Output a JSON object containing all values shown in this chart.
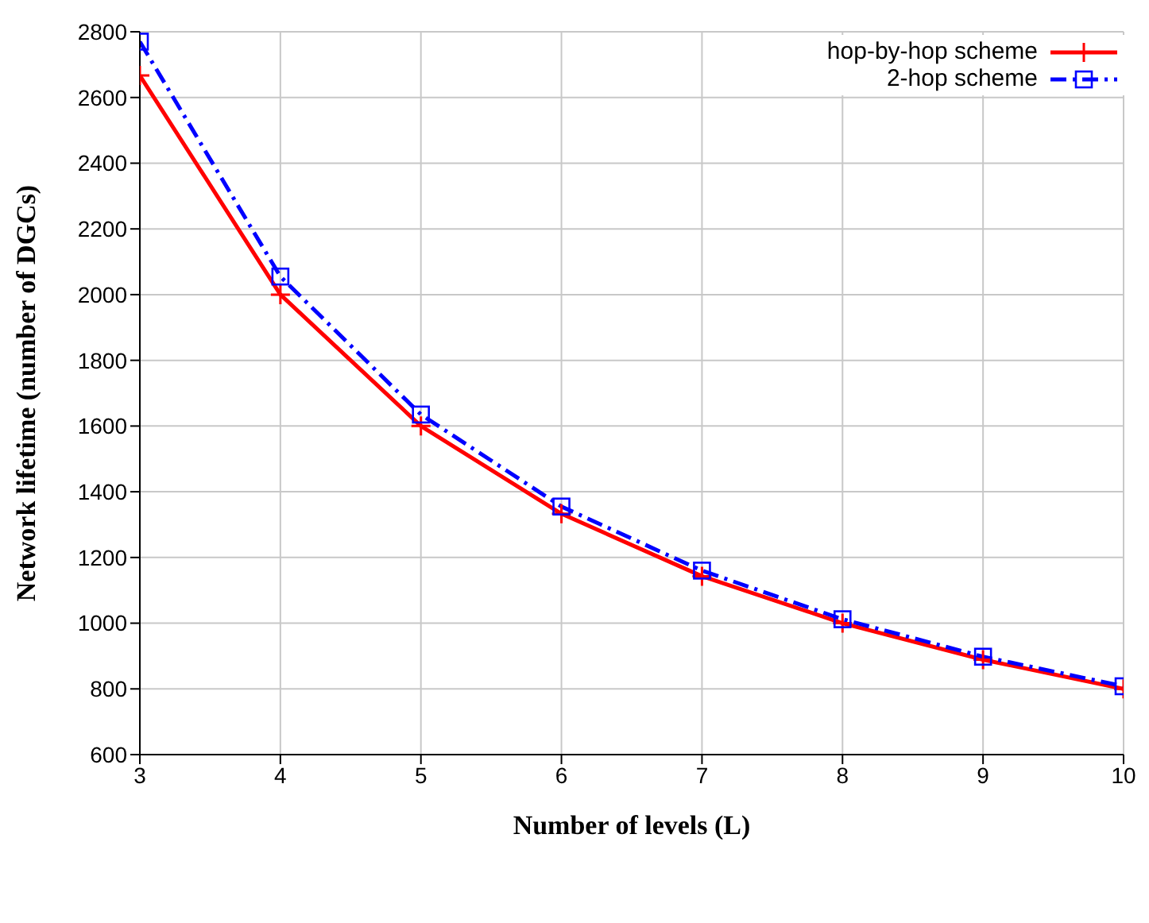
{
  "chart_data": {
    "type": "line",
    "xlabel": "Number of levels (L)",
    "ylabel": "Network lifetime (number of DGCs)",
    "x": [
      3,
      4,
      5,
      6,
      7,
      8,
      9,
      10
    ],
    "series": [
      {
        "name": "hop-by-hop scheme",
        "color": "#ff0000",
        "marker": "cross",
        "line_style": "solid",
        "values": [
          2667,
          2000,
          1600,
          1333,
          1143,
          1000,
          889,
          800
        ]
      },
      {
        "name": "2-hop scheme",
        "color": "#0000ff",
        "marker": "square",
        "line_style": "dashed",
        "values": [
          2770,
          2055,
          1635,
          1355,
          1160,
          1012,
          898,
          808
        ]
      }
    ],
    "xlim": [
      3,
      10
    ],
    "xticks": [
      3,
      4,
      5,
      6,
      7,
      8,
      9,
      10
    ],
    "ylim": [
      600,
      2800
    ],
    "yticks": [
      600,
      800,
      1000,
      1200,
      1400,
      1600,
      1800,
      2000,
      2200,
      2400,
      2600,
      2800
    ],
    "grid": true,
    "legend": "top right"
  }
}
